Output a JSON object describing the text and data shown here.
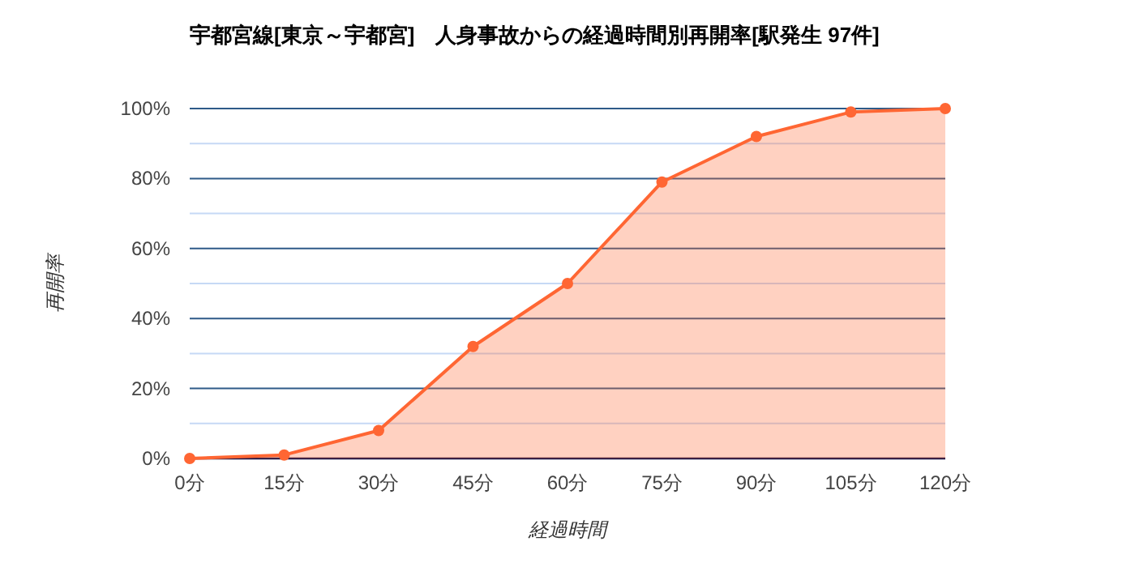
{
  "chart_data": {
    "type": "area",
    "title": "宇都宮線[東京～宇都宮]　人身事故からの経過時間別再開率[駅発生 97件]",
    "xlabel": "経過時間",
    "ylabel": "再開率",
    "categories": [
      "0分",
      "15分",
      "30分",
      "45分",
      "60分",
      "75分",
      "90分",
      "105分",
      "120分"
    ],
    "series": [
      {
        "color": "#ff6633",
        "values": [
          0,
          1,
          8,
          32,
          50,
          79,
          92,
          99,
          100
        ]
      }
    ],
    "ylim": [
      0,
      100
    ],
    "yticks": [
      {
        "value": 0,
        "label": "0%"
      },
      {
        "value": 10,
        "label": null
      },
      {
        "value": 20,
        "label": "20%"
      },
      {
        "value": 30,
        "label": null
      },
      {
        "value": 40,
        "label": "40%"
      },
      {
        "value": 50,
        "label": null
      },
      {
        "value": 60,
        "label": "60%"
      },
      {
        "value": 70,
        "label": null
      },
      {
        "value": 80,
        "label": "80%"
      },
      {
        "value": 90,
        "label": null
      },
      {
        "value": 100,
        "label": "100%"
      }
    ],
    "grid": "y",
    "marker": "circle",
    "line_style": "solid"
  }
}
